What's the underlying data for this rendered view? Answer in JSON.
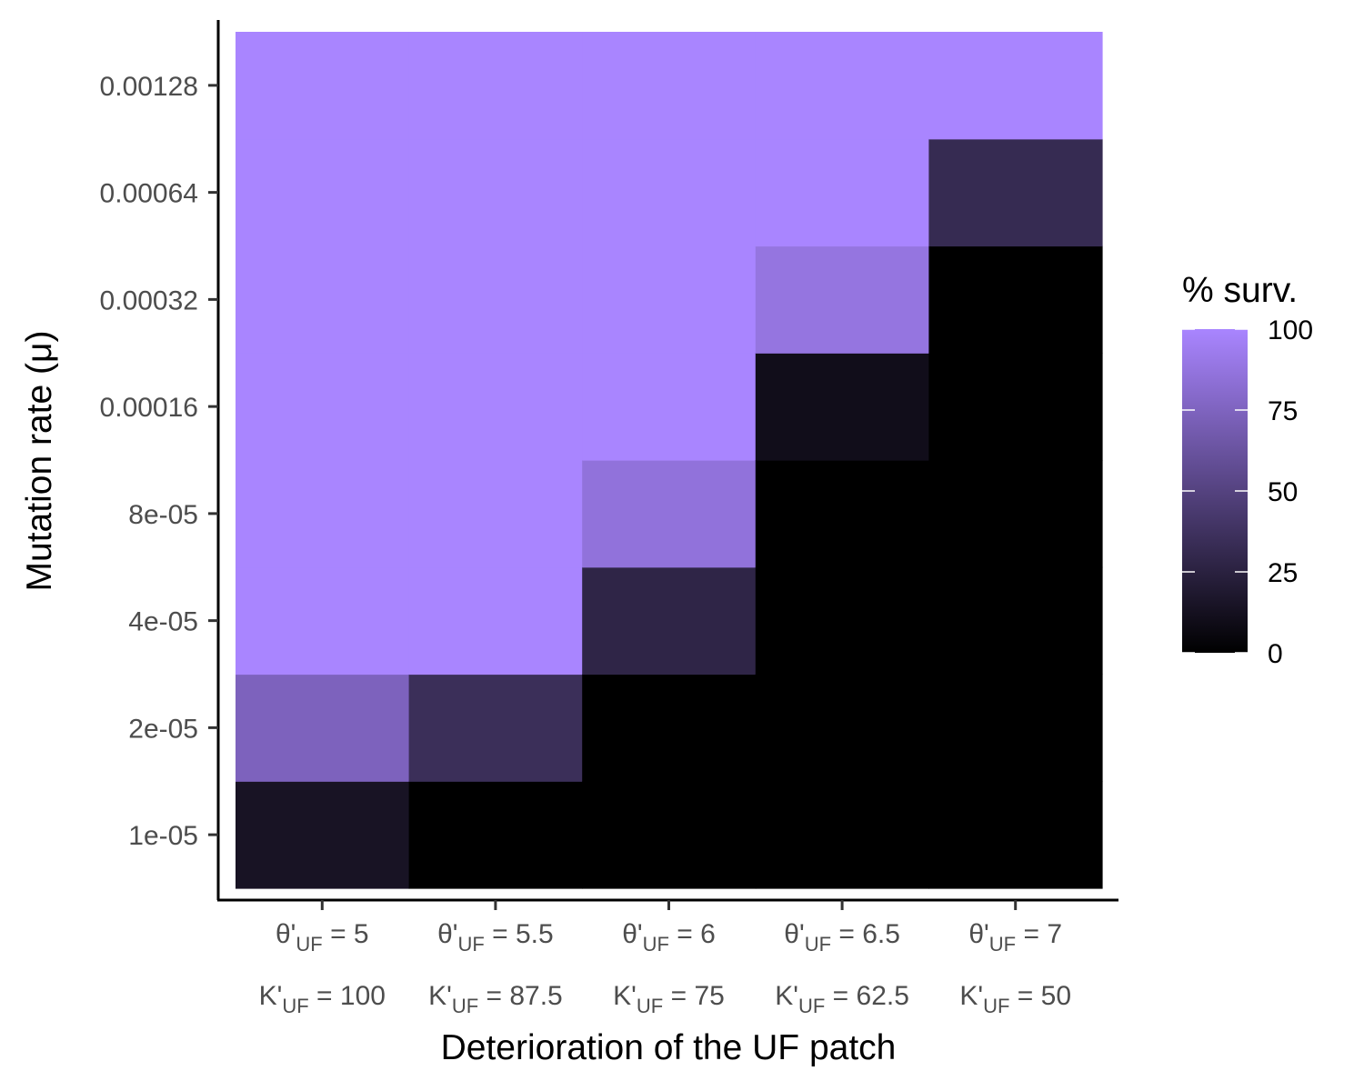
{
  "chart_data": {
    "type": "heatmap",
    "title": "",
    "xlabel": "Deterioration of the UF patch",
    "ylabel": "Mutation rate (μ)",
    "x_categories": [
      {
        "theta_prefix": "θ'",
        "theta_sub": "UF",
        "theta_value": "= 5",
        "k_prefix": "K'",
        "k_sub": "UF",
        "k_value": "= 100"
      },
      {
        "theta_prefix": "θ'",
        "theta_sub": "UF",
        "theta_value": "= 5.5",
        "k_prefix": "K'",
        "k_sub": "UF",
        "k_value": "= 87.5"
      },
      {
        "theta_prefix": "θ'",
        "theta_sub": "UF",
        "theta_value": "= 6",
        "k_prefix": "K'",
        "k_sub": "UF",
        "k_value": "= 75"
      },
      {
        "theta_prefix": "θ'",
        "theta_sub": "UF",
        "theta_value": "= 6.5",
        "k_prefix": "K'",
        "k_sub": "UF",
        "k_value": "= 62.5"
      },
      {
        "theta_prefix": "θ'",
        "theta_sub": "UF",
        "theta_value": "= 7",
        "k_prefix": "K'",
        "k_sub": "UF",
        "k_value": "= 50"
      }
    ],
    "y_categories": [
      "1e-05",
      "2e-05",
      "4e-05",
      "8e-05",
      "0.00016",
      "0.00032",
      "0.00064",
      "0.00128"
    ],
    "values": [
      [
        14,
        74,
        100,
        100,
        100,
        100,
        100,
        100
      ],
      [
        0,
        35,
        100,
        100,
        100,
        100,
        100,
        100
      ],
      [
        0,
        0,
        28,
        86,
        100,
        100,
        100,
        100
      ],
      [
        0,
        0,
        0,
        0,
        10,
        88,
        100,
        100
      ],
      [
        0,
        0,
        0,
        0,
        0,
        0,
        32,
        100
      ]
    ],
    "legend": {
      "title": "% surv.",
      "range": [
        0,
        100
      ],
      "ticks": [
        0,
        25,
        50,
        75,
        100
      ],
      "low_color": "#000000",
      "high_color": "#A985FF",
      "position": "right"
    }
  }
}
